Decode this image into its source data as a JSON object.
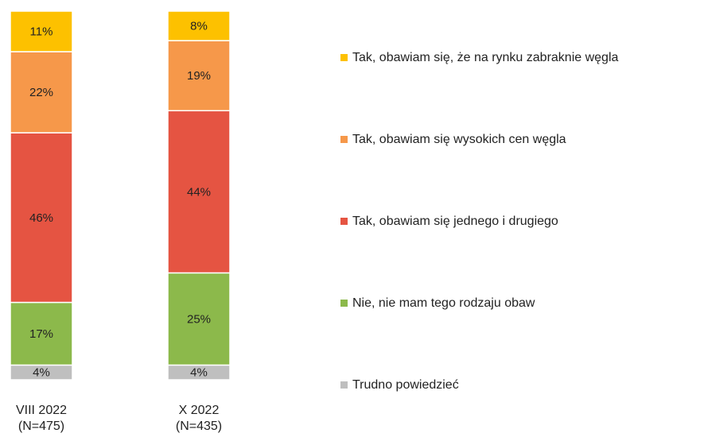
{
  "chart_data": {
    "type": "stacked_bar",
    "categories": [
      [
        "VIII 2022",
        "(N=475)"
      ],
      [
        "X 2022",
        "(N=435)"
      ]
    ],
    "series": [
      {
        "name": "Trudno powiedzieć",
        "color": "#bfbfbf",
        "values": [
          4,
          4
        ],
        "value_labels": [
          "4%",
          "4%"
        ]
      },
      {
        "name": "Nie, nie mam tego rodzaju obaw",
        "color": "#8cb94b",
        "values": [
          17,
          25
        ],
        "value_labels": [
          "17%",
          "25%"
        ]
      },
      {
        "name": "Tak, obawiam się jednego i drugiego",
        "color": "#e55442",
        "values": [
          46,
          44
        ],
        "value_labels": [
          "46%",
          "44%"
        ]
      },
      {
        "name": "Tak, obawiam się wysokich cen węgla",
        "color": "#f6984a",
        "values": [
          22,
          19
        ],
        "value_labels": [
          "22%",
          "19%"
        ]
      },
      {
        "name": "Tak, obawiam się, że na rynku zabraknie węgla",
        "color": "#fdc100",
        "values": [
          11,
          8
        ],
        "value_labels": [
          "11%",
          "8%"
        ]
      }
    ],
    "legend": "right"
  }
}
